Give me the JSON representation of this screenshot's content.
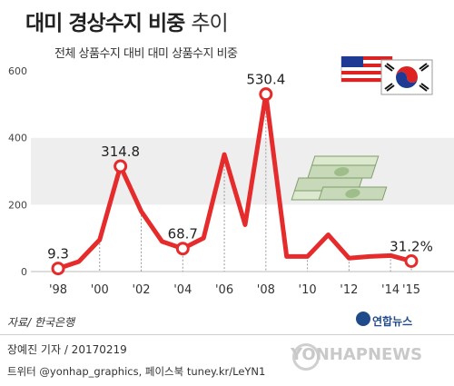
{
  "header": {
    "title": "대미 경상수지 비중",
    "title_suffix": "추이",
    "subtitle": "전체 상품수지 대비 대미 상품수지 비중"
  },
  "footer": {
    "source": "자료/ 한국은행",
    "byline": "장예진 기자 / 20170219",
    "social": "트위터 @yonhap_graphics, 페이스북 tuney.kr/LeYN1",
    "brand": "연합뉴스",
    "watermark": "YONHAPNEWS"
  },
  "colors": {
    "line": "#e52b2b",
    "band": "#eeeeee",
    "text": "#222222"
  },
  "icons": [
    "us-flag-icon",
    "korea-flag-icon",
    "money-stack-icon"
  ],
  "chart_data": {
    "type": "line",
    "title": "대미 경상수지 비중 추이",
    "x": [
      1998,
      1999,
      2000,
      2001,
      2002,
      2003,
      2004,
      2005,
      2006,
      2007,
      2008,
      2009,
      2010,
      2011,
      2012,
      2013,
      2014,
      2015
    ],
    "series": [
      {
        "name": "",
        "values": [
          9.3,
          30,
          95,
          314.8,
          180,
          90,
          68.7,
          100,
          350,
          140,
          530.4,
          45,
          45,
          110,
          40,
          45,
          48,
          31.2
        ]
      }
    ],
    "data_labels": [
      {
        "x": 1998,
        "text": "9.3"
      },
      {
        "x": 2001,
        "text": "314.8"
      },
      {
        "x": 2004,
        "text": "68.7"
      },
      {
        "x": 2008,
        "text": "530.4"
      },
      {
        "x": 2015,
        "text": "31.2%"
      }
    ],
    "x_tick_labels": [
      "'98",
      "'00",
      "'02",
      "'04",
      "'06",
      "'08",
      "'10",
      "'12",
      "'14",
      "'15"
    ],
    "x_tick_years": [
      1998,
      2000,
      2002,
      2004,
      2006,
      2008,
      2010,
      2012,
      2014,
      2015
    ],
    "y_ticks": [
      0,
      200,
      400,
      600
    ],
    "ylim": [
      0,
      600
    ],
    "xlim": [
      1998,
      2015
    ],
    "grid": "horizontal bands",
    "xlabel": "",
    "ylabel": ""
  }
}
